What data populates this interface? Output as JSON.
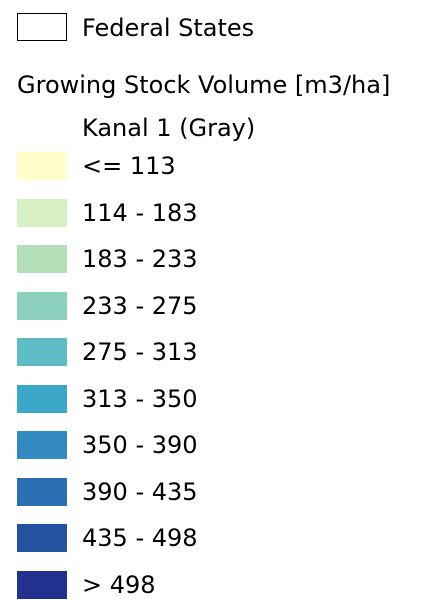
{
  "legend": {
    "boundary": {
      "label": "Federal States",
      "stroke": "#000000",
      "fill": "#ffffff"
    },
    "layer": {
      "title": "Growing Stock Volume [m3/ha]",
      "band": "Kanal 1 (Gray)",
      "classes": [
        {
          "label": "<= 113",
          "color": "#ffffcc"
        },
        {
          "label": "114 - 183",
          "color": "#d7efc3"
        },
        {
          "label": "183 - 233",
          "color": "#b2dfb8"
        },
        {
          "label": "233 - 275",
          "color": "#8bcfbd"
        },
        {
          "label": "275 - 313",
          "color": "#5fbcc4"
        },
        {
          "label": "313 - 350",
          "color": "#3ca6c8"
        },
        {
          "label": "350 - 390",
          "color": "#338ac0"
        },
        {
          "label": "390 - 435",
          "color": "#2b6eb2"
        },
        {
          "label": "435 - 498",
          "color": "#2551a1"
        },
        {
          "label": "> 498",
          "color": "#22318e"
        }
      ]
    }
  }
}
